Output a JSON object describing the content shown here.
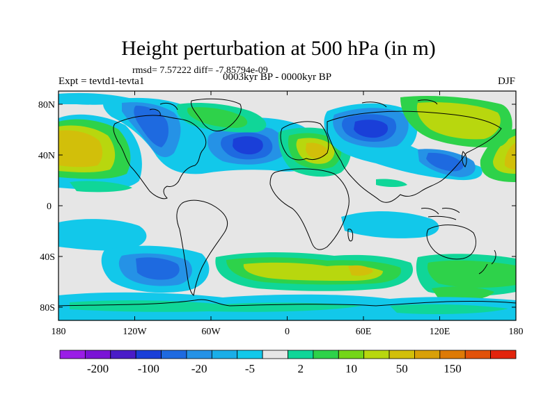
{
  "title": "Height perturbation at 500 hPa (in m)",
  "stats": "rmsd= 7.57222 diff= -7.85794e-09",
  "experiment": "Expt = tevtd1-tevta1",
  "period": "0003kyr BP - 0000kyr BP",
  "season": "DJF",
  "y_ticks": [
    "80N",
    "40N",
    "0",
    "40S",
    "80S"
  ],
  "x_ticks": [
    "180",
    "120W",
    "60W",
    "0",
    "60E",
    "120E",
    "180"
  ],
  "colorbar": {
    "colors": [
      "#9a1de6",
      "#7a14d6",
      "#4a1cc8",
      "#1a3fd8",
      "#1e6ae0",
      "#2592e6",
      "#1aaee8",
      "#12c8ea",
      "#e6e6e6",
      "#10d698",
      "#2ed24a",
      "#74d618",
      "#b8d70e",
      "#d2bf0a",
      "#d8a008",
      "#de7a06",
      "#e2520a",
      "#e2240c"
    ],
    "labels": [
      "-200",
      "-100",
      "-20",
      "-5",
      "2",
      "10",
      "50",
      "150"
    ]
  },
  "palette": {
    "light_gray": "#e6e6e6",
    "sea_green": "#10d698",
    "green": "#2ed24a",
    "yellow_green": "#b8d70e",
    "ochre": "#d2bf0a",
    "cyan": "#12c8ea",
    "sky": "#2592e6",
    "blue": "#1e6ae0",
    "deep_blue": "#1a3fd8"
  }
}
